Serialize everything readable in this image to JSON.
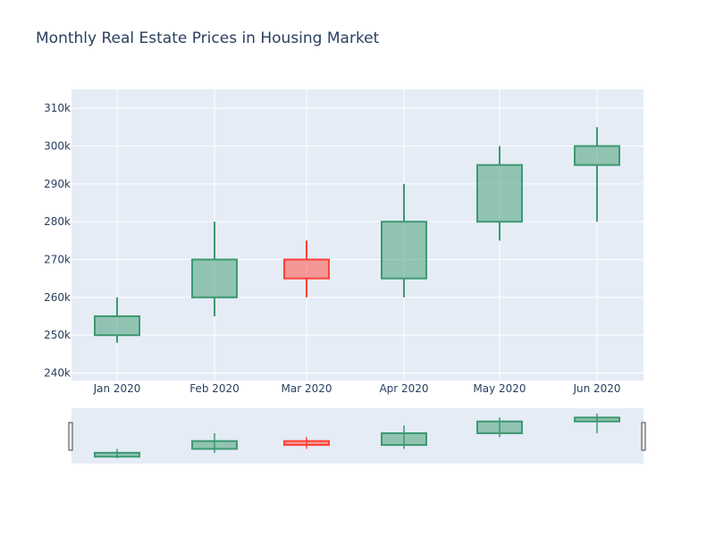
{
  "chart_data": {
    "type": "candlestick",
    "title": "Monthly Real Estate Prices in Housing Market",
    "xlabel": "",
    "ylabel": "",
    "categories": [
      "Jan 2020",
      "Feb 2020",
      "Mar 2020",
      "Apr 2020",
      "May 2020",
      "Jun 2020"
    ],
    "ohlc": [
      {
        "open": 250000,
        "high": 260000,
        "low": 248000,
        "close": 255000
      },
      {
        "open": 260000,
        "high": 280000,
        "low": 255000,
        "close": 270000
      },
      {
        "open": 270000,
        "high": 275000,
        "low": 260000,
        "close": 265000
      },
      {
        "open": 265000,
        "high": 290000,
        "low": 260000,
        "close": 280000
      },
      {
        "open": 280000,
        "high": 300000,
        "low": 275000,
        "close": 295000
      },
      {
        "open": 295000,
        "high": 305000,
        "low": 280000,
        "close": 300000
      }
    ],
    "ylim": [
      238000,
      315000
    ],
    "yticks": [
      240000,
      250000,
      260000,
      270000,
      280000,
      290000,
      300000,
      310000
    ],
    "ytick_labels": [
      "240k",
      "250k",
      "260k",
      "270k",
      "280k",
      "290k",
      "300k",
      "310k"
    ],
    "grid": true,
    "legend": "none",
    "range_slider": true,
    "colors": {
      "increasing_line": "#3d9970",
      "increasing_fill": "rgba(61,153,112,0.5)",
      "decreasing_line": "#ff4136",
      "decreasing_fill": "rgba(255,65,54,0.5)",
      "plot_bg": "#e5ecf6",
      "grid": "#ffffff",
      "text": "#2a3f5f"
    }
  }
}
